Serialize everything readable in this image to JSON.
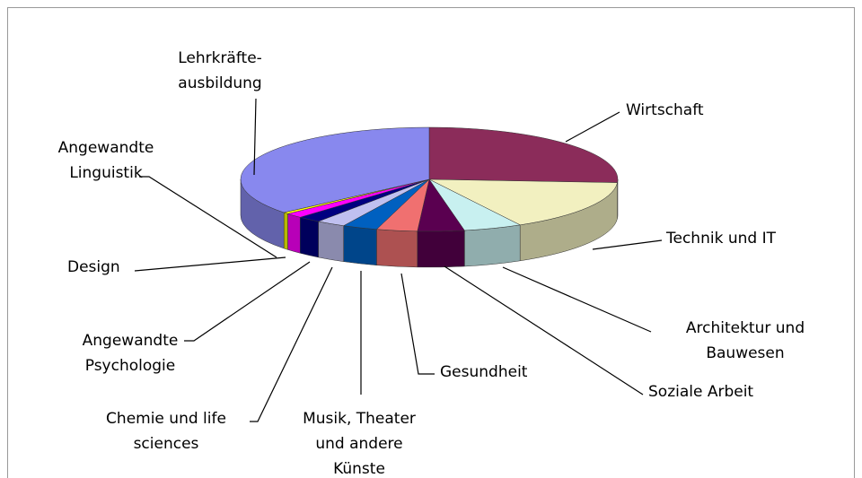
{
  "chart_data": {
    "type": "pie3d",
    "categories": [
      "Wirtschaft",
      "Technik und IT",
      "Architektur und\nBauwesen",
      "Soziale Arbeit",
      "Gesundheit",
      "Musik, Theater\nund andere\nKünste",
      "Chemie und life\nsciences",
      "Angewandte\nPsychologie",
      "Design",
      "Angewandte\nLinguistik",
      "Lehrkräfte-\nausbildung"
    ],
    "values": [
      26,
      16,
      5,
      4,
      3.5,
      3,
      2.5,
      2,
      1.5,
      0.5,
      36
    ],
    "colors": [
      "#8b2c5a",
      "#f2f0c0",
      "#c8f0f0",
      "#5a0050",
      "#f07070",
      "#0060c0",
      "#c0c0f0",
      "#000080",
      "#ff00ff",
      "#ffff00",
      "#8888ee"
    ]
  }
}
